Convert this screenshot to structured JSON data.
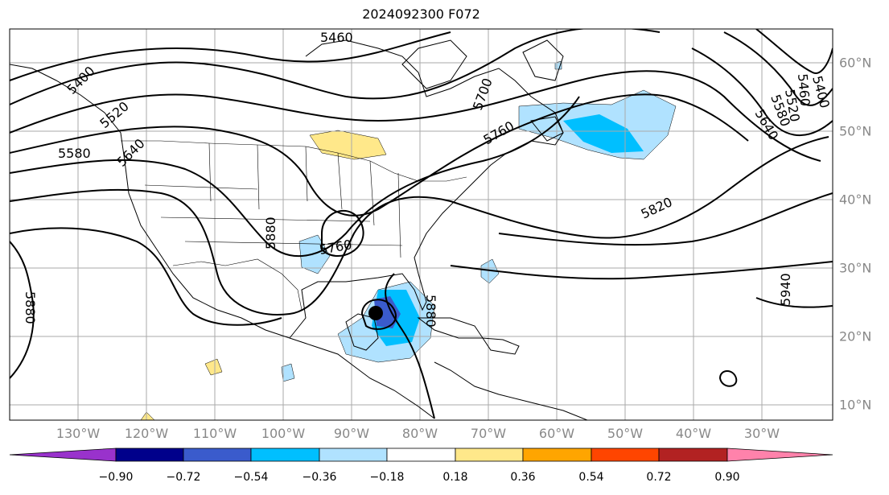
{
  "title": "2024092300 F072",
  "map": {
    "projection": "plate-carree",
    "lon_range": [
      -138,
      -16
    ],
    "lat_range": [
      8,
      65
    ],
    "lon_labels": [
      "130°W",
      "120°W",
      "110°W",
      "100°W",
      "90°W",
      "80°W",
      "70°W",
      "60°W",
      "50°W",
      "40°W",
      "30°W"
    ],
    "lat_labels": [
      "60°N",
      "50°N",
      "40°N",
      "30°N",
      "20°N",
      "10°N"
    ],
    "contour_labels": [
      "5460",
      "5400",
      "5520",
      "5580",
      "5640",
      "5700",
      "5760",
      "5880",
      "5760",
      "5820",
      "5640",
      "5580",
      "5520",
      "5460",
      "5400",
      "5940",
      "5880",
      "5880"
    ],
    "storm_marker": "storm-center-icon"
  },
  "colorbar": {
    "ticks": [
      "−0.90",
      "−0.72",
      "−0.54",
      "−0.36",
      "−0.18",
      "0.18",
      "0.36",
      "0.54",
      "0.72",
      "0.90"
    ],
    "colors": [
      "#9932cc",
      "#00008b",
      "#3a5bcc",
      "#00bfff",
      "#b0e2ff",
      "#ffffff",
      "#ffe88a",
      "#ffa500",
      "#ff4500",
      "#b22222",
      "#ff82ab"
    ]
  }
}
